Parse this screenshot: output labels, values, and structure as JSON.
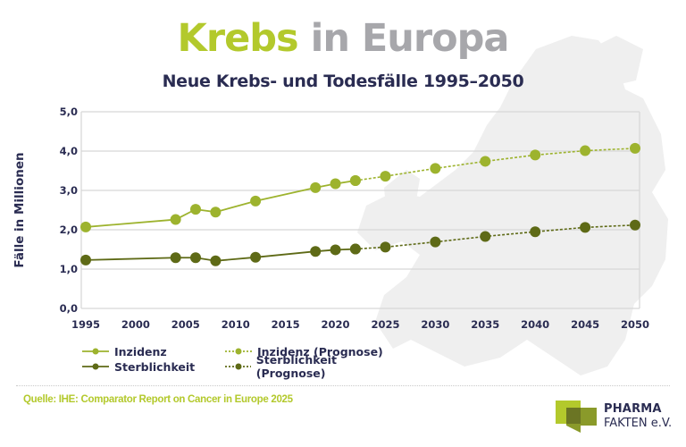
{
  "title": {
    "part1": "Krebs",
    "part2": " in Europa"
  },
  "subtitle": "Neue Krebs- und Todesfälle 1995–2050",
  "y_axis_label": "Fälle in Millionen",
  "legend": {
    "items": [
      {
        "label": "Inzidenz",
        "style": "solid",
        "color": "#9db32e"
      },
      {
        "label": "Inzidenz (Prognose)",
        "style": "dashed",
        "color": "#9db32e"
      },
      {
        "label": "Sterblichkeit",
        "style": "solid",
        "color": "#5e6a16"
      },
      {
        "label": "Sterblichkeit (Prognose)",
        "style": "dashed",
        "color": "#5e6a16"
      }
    ]
  },
  "source": "Quelle: IHE: Comparator Report on Cancer in Europe 2025",
  "logo": {
    "line1": "PHARMA",
    "line2": "FAKTEN e.V."
  },
  "colors": {
    "title_accent": "#b3c92c",
    "title_gray": "#a7a7ab",
    "navy": "#2a2c52",
    "incidence": "#9db32e",
    "mortality": "#5e6a16",
    "grid": "#d6d6d6",
    "map": "#eeeeee"
  },
  "chart_data": {
    "type": "line",
    "title": "Krebs in Europa",
    "subtitle": "Neue Krebs- und Todesfälle 1995–2050",
    "xlabel": "",
    "ylabel": "Fälle in Millionen",
    "xlim": [
      1995,
      2050
    ],
    "ylim": [
      0,
      5
    ],
    "x_ticks": [
      "1995",
      "2000",
      "2005",
      "2010",
      "2015",
      "2020",
      "2025",
      "2030",
      "2035",
      "2040",
      "2045",
      "2050"
    ],
    "y_ticks": [
      "0,0",
      "1,0",
      "2,0",
      "3,0",
      "4,0",
      "5,0"
    ],
    "grid": "horizontal",
    "legend_position": "bottom-left",
    "series": [
      {
        "name": "Inzidenz",
        "style": "solid",
        "x": [
          1995,
          2004,
          2006,
          2008,
          2012,
          2018,
          2020,
          2022
        ],
        "values": [
          2.07,
          2.26,
          2.52,
          2.45,
          2.73,
          3.07,
          3.17,
          3.25
        ]
      },
      {
        "name": "Inzidenz (Prognose)",
        "style": "dashed",
        "x": [
          2022,
          2025,
          2030,
          2035,
          2040,
          2045,
          2050
        ],
        "values": [
          3.25,
          3.36,
          3.56,
          3.74,
          3.9,
          4.01,
          4.07
        ]
      },
      {
        "name": "Sterblichkeit",
        "style": "solid",
        "x": [
          1995,
          2004,
          2006,
          2008,
          2012,
          2018,
          2020,
          2022
        ],
        "values": [
          1.23,
          1.29,
          1.29,
          1.21,
          1.3,
          1.45,
          1.49,
          1.51
        ]
      },
      {
        "name": "Sterblichkeit (Prognose)",
        "style": "dashed",
        "x": [
          2022,
          2025,
          2030,
          2035,
          2040,
          2045,
          2050
        ],
        "values": [
          1.51,
          1.56,
          1.69,
          1.83,
          1.95,
          2.06,
          2.12
        ]
      }
    ]
  }
}
